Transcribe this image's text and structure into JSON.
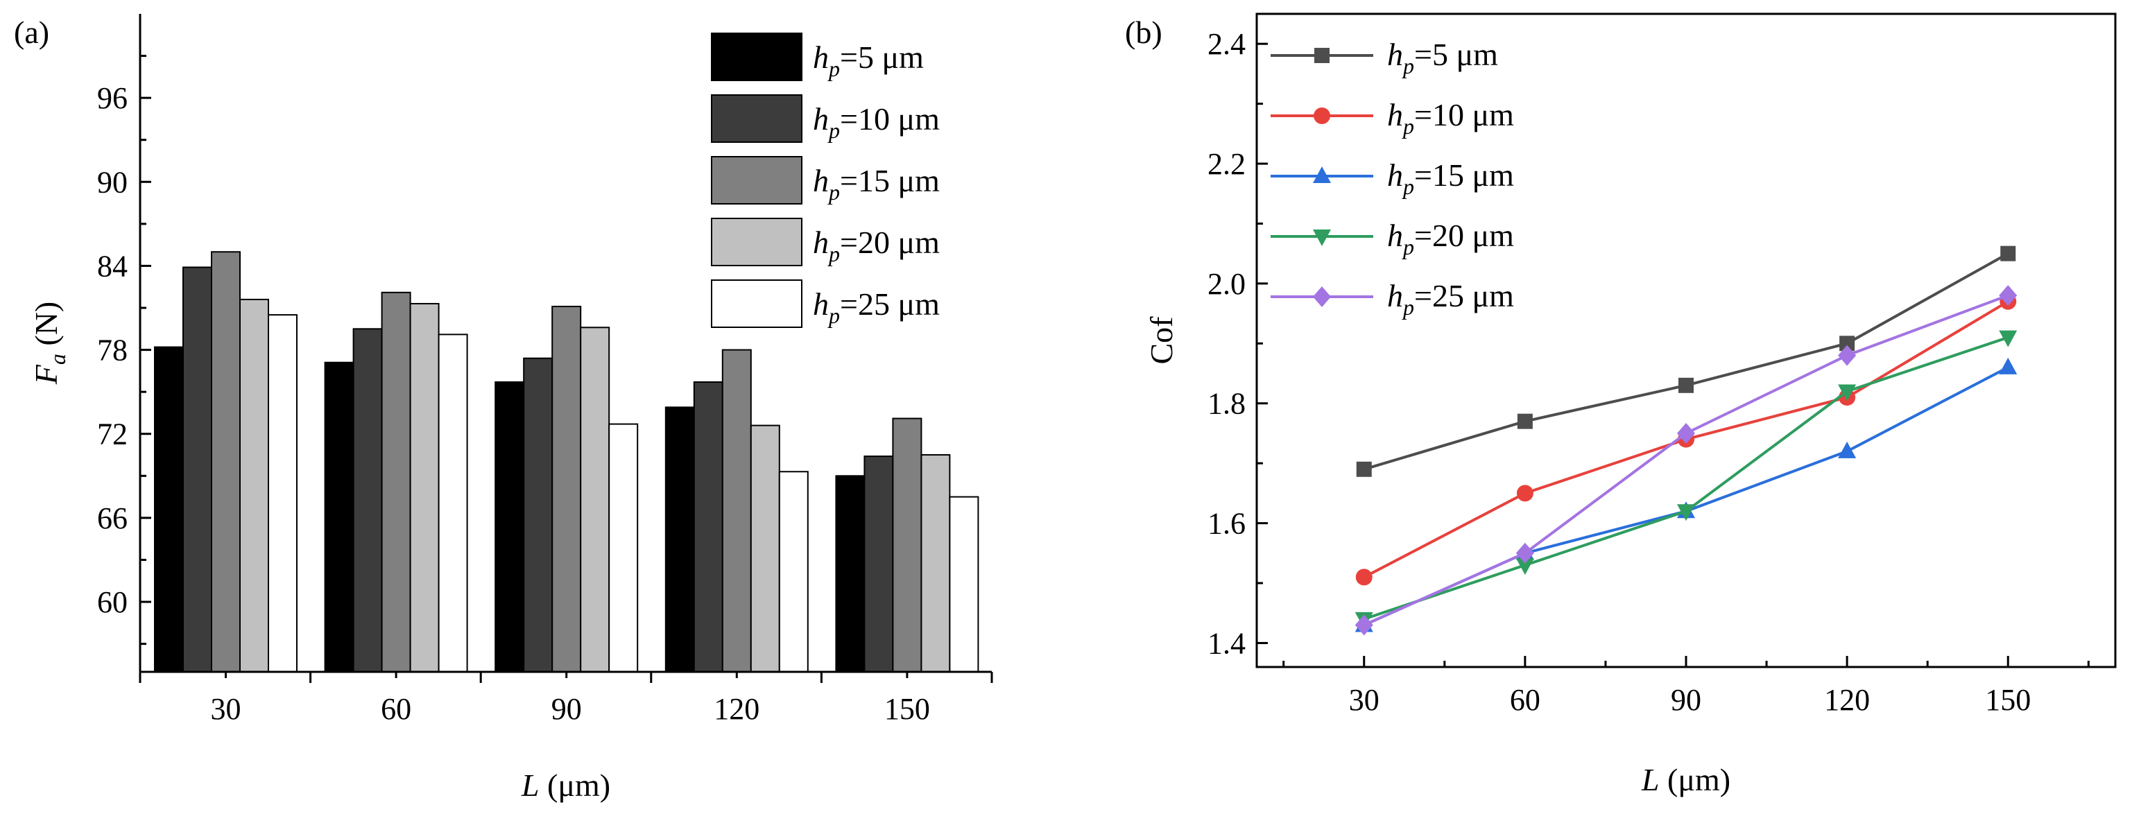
{
  "chart_data": [
    {
      "panel_label": "(a)",
      "type": "bar",
      "xlabel": {
        "var": "L",
        "unit": " (μm)"
      },
      "ylabel": {
        "var": "F",
        "sub": "a",
        "unit": " (N)"
      },
      "categories": [
        "30",
        "60",
        "90",
        "120",
        "150"
      ],
      "ylim": [
        55,
        102
      ],
      "yticks": [
        60,
        66,
        72,
        78,
        84,
        90,
        96
      ],
      "grid": false,
      "legend_position": "top-right",
      "series": [
        {
          "name": "=5 μm",
          "legend_var": "h",
          "legend_sub": "p",
          "color": "#000000",
          "values": [
            78.2,
            77.1,
            75.7,
            73.9,
            69.0
          ]
        },
        {
          "name": "=10 μm",
          "legend_var": "h",
          "legend_sub": "p",
          "color": "#3c3c3c",
          "values": [
            83.9,
            79.5,
            77.4,
            75.7,
            70.4
          ]
        },
        {
          "name": "=15 μm",
          "legend_var": "h",
          "legend_sub": "p",
          "color": "#808080",
          "values": [
            85.0,
            82.1,
            81.1,
            78.0,
            73.1
          ]
        },
        {
          "name": "=20 μm",
          "legend_var": "h",
          "legend_sub": "p",
          "color": "#c0c0c0",
          "values": [
            81.6,
            81.3,
            79.6,
            72.6,
            70.5
          ]
        },
        {
          "name": "=25 μm",
          "legend_var": "h",
          "legend_sub": "p",
          "color": "#ffffff",
          "values": [
            80.5,
            79.1,
            72.7,
            69.3,
            67.5
          ]
        }
      ]
    },
    {
      "panel_label": "(b)",
      "type": "line",
      "xlabel": {
        "var": "L",
        "unit": " (μm)"
      },
      "ylabel": {
        "text": "Cof"
      },
      "x": [
        30,
        60,
        90,
        120,
        150
      ],
      "xlim": [
        10,
        170
      ],
      "xticks": [
        30,
        60,
        90,
        120,
        150
      ],
      "ylim": [
        1.36,
        2.45
      ],
      "yticks": [
        1.4,
        1.6,
        1.8,
        2.0,
        2.2,
        2.4
      ],
      "grid": false,
      "legend_position": "top-left",
      "series": [
        {
          "name": "=5 μm",
          "legend_var": "h",
          "legend_sub": "p",
          "color": "#4d4d4d",
          "marker": "square",
          "values": [
            1.69,
            1.77,
            1.83,
            1.9,
            2.05
          ]
        },
        {
          "name": "=10 μm",
          "legend_var": "h",
          "legend_sub": "p",
          "color": "#e8413c",
          "marker": "circle",
          "values": [
            1.51,
            1.65,
            1.74,
            1.81,
            1.97
          ]
        },
        {
          "name": "=15 μm",
          "legend_var": "h",
          "legend_sub": "p",
          "color": "#2a6fdb",
          "marker": "triangle-up",
          "values": [
            1.43,
            1.55,
            1.62,
            1.72,
            1.86
          ]
        },
        {
          "name": "=20 μm",
          "legend_var": "h",
          "legend_sub": "p",
          "color": "#2e9d5f",
          "marker": "triangle-down",
          "values": [
            1.44,
            1.53,
            1.62,
            1.82,
            1.91
          ]
        },
        {
          "name": "=25 μm",
          "legend_var": "h",
          "legend_sub": "p",
          "color": "#a374e2",
          "marker": "diamond",
          "values": [
            1.43,
            1.55,
            1.75,
            1.88,
            1.98
          ]
        }
      ]
    }
  ]
}
